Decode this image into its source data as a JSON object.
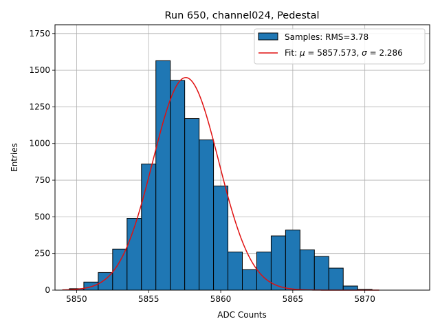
{
  "chart_data": {
    "type": "bar",
    "title": "Run 650, channel024, Pedestal",
    "xlabel": "ADC Counts",
    "ylabel": "Entries",
    "xlim": [
      5848.5,
      5874.5
    ],
    "ylim": [
      0,
      1810
    ],
    "grid": true,
    "legend_position": "top-right",
    "bin_width": 1,
    "bins": [
      {
        "x": 5850,
        "y": 10
      },
      {
        "x": 5851,
        "y": 55
      },
      {
        "x": 5852,
        "y": 120
      },
      {
        "x": 5853,
        "y": 280
      },
      {
        "x": 5854,
        "y": 490
      },
      {
        "x": 5855,
        "y": 860
      },
      {
        "x": 5856,
        "y": 1565
      },
      {
        "x": 5857,
        "y": 1430
      },
      {
        "x": 5858,
        "y": 1170
      },
      {
        "x": 5859,
        "y": 1025
      },
      {
        "x": 5860,
        "y": 710
      },
      {
        "x": 5861,
        "y": 260
      },
      {
        "x": 5862,
        "y": 140
      },
      {
        "x": 5863,
        "y": 260
      },
      {
        "x": 5864,
        "y": 370
      },
      {
        "x": 5865,
        "y": 410
      },
      {
        "x": 5866,
        "y": 275
      },
      {
        "x": 5867,
        "y": 230
      },
      {
        "x": 5868,
        "y": 150
      },
      {
        "x": 5869,
        "y": 28
      },
      {
        "x": 5870,
        "y": 5
      }
    ],
    "fit": {
      "mu": 5857.573,
      "sigma": 2.286,
      "amplitude": 1450,
      "x_start": 5849,
      "x_end": 5871
    },
    "xticks": [
      5850,
      5855,
      5860,
      5865,
      5870
    ],
    "yticks": [
      0,
      250,
      500,
      750,
      1000,
      1250,
      1500,
      1750
    ],
    "legend": {
      "samples_label": "Samples: RMS=3.78",
      "fit_label_prefix": "Fit: ",
      "mu_symbol": "μ",
      "mu_text": " = 5857.573, ",
      "sigma_symbol": "σ",
      "sigma_text": " = 2.286"
    },
    "colors": {
      "bar": "#1f77b4",
      "bar_edge": "#000000",
      "fit": "#e01010",
      "grid": "#b0b0b0"
    }
  }
}
